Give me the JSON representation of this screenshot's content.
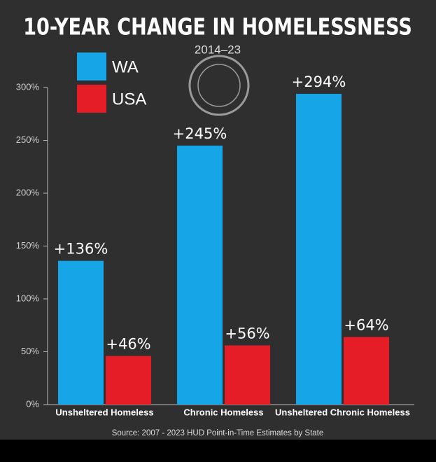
{
  "chart_data": {
    "type": "bar",
    "title": "10-YEAR CHANGE IN HOMELESSNESS",
    "subtitle": "2014–23",
    "source": "Source: 2007 - 2023 HUD Point-in-Time Estimates by State",
    "categories": [
      "Unsheltered Homeless",
      "Chronic Homeless",
      "Unsheltered Chronic Homeless"
    ],
    "series": [
      {
        "name": "WA",
        "color": "#16a5e6",
        "values": [
          136,
          245,
          294
        ],
        "value_labels": [
          "+136%",
          "+245%",
          "+294%"
        ]
      },
      {
        "name": "USA",
        "color": "#e51d27",
        "values": [
          46,
          56,
          64
        ],
        "value_labels": [
          "+46%",
          "+56%",
          "+64%"
        ]
      }
    ],
    "ylim": [
      0,
      300
    ],
    "yticks": [
      {
        "value": 0,
        "label": "0%"
      },
      {
        "value": 50,
        "label": "50%"
      },
      {
        "value": 100,
        "label": "100%"
      },
      {
        "value": 150,
        "label": "150%"
      },
      {
        "value": 200,
        "label": "200%"
      },
      {
        "value": 250,
        "label": "250%"
      },
      {
        "value": 300,
        "label": "300%"
      }
    ]
  }
}
